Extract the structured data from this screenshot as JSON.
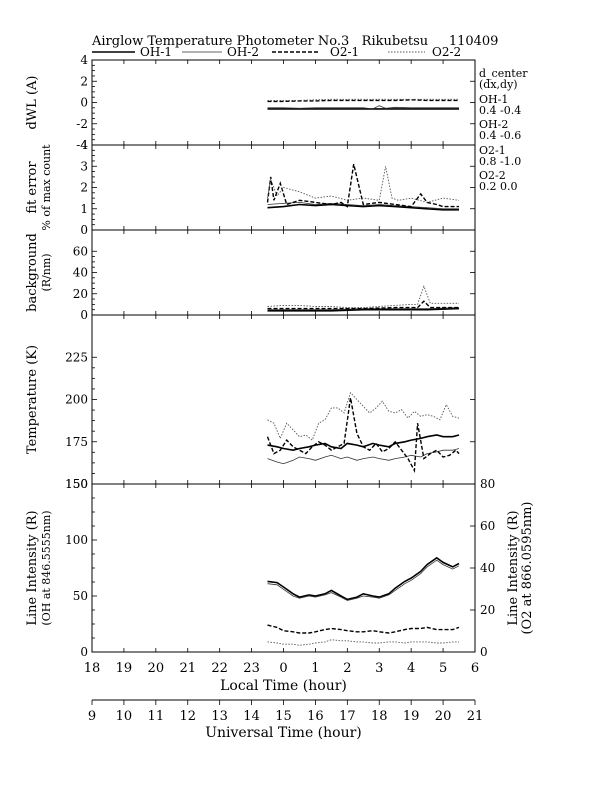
{
  "chart_data": {
    "type": "line",
    "title": "Airglow Temperature Photometer No.3   Rikubetsu     110409",
    "legend": [
      {
        "name": "OH-1",
        "color": "#000000",
        "dash": "solid",
        "width": 1.6
      },
      {
        "name": "OH-2",
        "color": "#333333",
        "dash": "solid",
        "width": 0.8
      },
      {
        "name": "O2-1",
        "color": "#000000",
        "dash": "dashed",
        "width": 1.4
      },
      {
        "name": "O2-2",
        "color": "#555555",
        "dash": "dotted",
        "width": 0.9
      }
    ],
    "x_local": {
      "label": "Local Time (hour)",
      "range": [
        18,
        30
      ],
      "ticks": [
        "18",
        "19",
        "20",
        "21",
        "22",
        "23",
        "0",
        "1",
        "2",
        "3",
        "4",
        "5",
        "6"
      ]
    },
    "x_ut": {
      "label": "Universal Time (hour)",
      "range": [
        9,
        21
      ],
      "ticks": [
        "9",
        "10",
        "11",
        "12",
        "13",
        "14",
        "15",
        "16",
        "17",
        "18",
        "19",
        "20",
        "21"
      ]
    },
    "d_center": {
      "title": "d_center",
      "subtitle": "(dx,dy)",
      "entries": [
        {
          "name": "OH-1",
          "value": "0.4  -0.4"
        },
        {
          "name": "OH-2",
          "value": "0.4  -0.6"
        },
        {
          "name": "O2-1",
          "value": "0.8  -1.0"
        },
        {
          "name": "O2-2",
          "value": "0.2   0.0"
        }
      ]
    },
    "panels": [
      {
        "id": "dwl",
        "ylabel": [
          "dWL (A)"
        ],
        "ylim": [
          -4,
          4
        ],
        "yticks": [
          "-4",
          "-2",
          "0",
          "2",
          "4"
        ],
        "series": [
          {
            "name": "OH-1",
            "x": [
              23.5,
              24.5,
              25.5,
              26.5,
              27.0,
              27.2,
              27.5,
              28.0,
              28.5,
              29.5
            ],
            "y": [
              -0.6,
              -0.6,
              -0.6,
              -0.6,
              -0.6,
              -0.6,
              -0.6,
              -0.6,
              -0.6,
              -0.6
            ]
          },
          {
            "name": "OH-2",
            "x": [
              23.5,
              24.0,
              24.5,
              25.0,
              25.5,
              26.0,
              26.5,
              26.8,
              27.0,
              27.2,
              27.5,
              28.0,
              28.5,
              29.5
            ],
            "y": [
              -0.5,
              -0.5,
              -0.55,
              -0.5,
              -0.5,
              -0.5,
              -0.5,
              -0.6,
              -0.3,
              -0.55,
              -0.45,
              -0.5,
              -0.5,
              -0.5
            ]
          },
          {
            "name": "O2-1",
            "x": [
              23.5,
              24.0,
              24.5,
              25.0,
              25.5,
              26.0,
              26.5,
              27.0,
              27.5,
              28.0,
              28.5,
              29.0,
              29.5
            ],
            "y": [
              0.1,
              0.1,
              0.15,
              0.15,
              0.2,
              0.2,
              0.2,
              0.2,
              0.2,
              0.25,
              0.2,
              0.2,
              0.2
            ]
          },
          {
            "name": "O2-2",
            "x": [
              23.5,
              24.0,
              24.5,
              25.0,
              25.5,
              26.0,
              26.5,
              27.0,
              27.5,
              28.0,
              28.5,
              29.0,
              29.5
            ],
            "y": [
              0.2,
              0.2,
              0.2,
              0.25,
              0.3,
              0.3,
              0.3,
              0.3,
              0.3,
              0.3,
              0.3,
              0.3,
              0.3
            ]
          }
        ]
      },
      {
        "id": "fiterr",
        "ylabel": [
          "fit error",
          "% of max count"
        ],
        "ylim": [
          0,
          4
        ],
        "yticks": [
          "0",
          "1",
          "2",
          "3",
          "4"
        ],
        "series": [
          {
            "name": "OH-1",
            "x": [
              23.5,
              24.0,
              24.5,
              25.0,
              25.5,
              26.0,
              26.5,
              27.0,
              27.5,
              28.0,
              28.5,
              29.0,
              29.5
            ],
            "y": [
              1.05,
              1.1,
              1.2,
              1.15,
              1.2,
              1.15,
              1.1,
              1.15,
              1.1,
              1.05,
              1.0,
              0.95,
              0.95
            ]
          },
          {
            "name": "OH-2",
            "x": [
              23.5,
              24.0,
              24.5,
              25.0,
              25.5,
              26.0,
              26.5,
              27.0,
              27.5,
              28.0,
              28.5,
              29.0,
              29.5
            ],
            "y": [
              1.2,
              1.25,
              1.3,
              1.2,
              1.25,
              1.2,
              1.15,
              1.2,
              1.15,
              1.1,
              1.05,
              1.0,
              1.0
            ]
          },
          {
            "name": "O2-1",
            "x": [
              23.5,
              23.6,
              23.7,
              23.9,
              24.1,
              24.5,
              25.0,
              25.5,
              25.8,
              26.0,
              26.2,
              26.5,
              27.0,
              27.5,
              28.0,
              28.3,
              28.5,
              28.8,
              29.0,
              29.5
            ],
            "y": [
              1.3,
              2.5,
              1.4,
              2.2,
              1.2,
              1.4,
              1.3,
              1.2,
              1.3,
              1.1,
              3.1,
              1.2,
              1.3,
              1.2,
              1.1,
              1.7,
              1.3,
              1.2,
              1.1,
              1.1
            ]
          },
          {
            "name": "O2-2",
            "x": [
              23.5,
              23.6,
              23.8,
              24.0,
              24.5,
              25.0,
              25.5,
              26.0,
              26.5,
              27.0,
              27.2,
              27.4,
              27.6,
              28.0,
              28.5,
              29.0,
              29.5
            ],
            "y": [
              1.5,
              2.4,
              1.6,
              2.0,
              1.8,
              1.5,
              1.6,
              1.4,
              1.5,
              1.4,
              3.0,
              1.5,
              1.4,
              1.5,
              1.3,
              1.5,
              1.4
            ]
          }
        ]
      },
      {
        "id": "bg",
        "ylabel": [
          "background",
          "(R/nm)"
        ],
        "ylim": [
          0,
          80
        ],
        "yticks": [
          "0",
          "20",
          "40",
          "60"
        ],
        "series": [
          {
            "name": "OH-1",
            "x": [
              23.5,
              24.5,
              25.5,
              26.5,
              27.5,
              28.5,
              29.5
            ],
            "y": [
              4,
              4,
              4,
              5,
              5,
              5,
              6
            ]
          },
          {
            "name": "OH-2",
            "x": [
              23.5,
              24.5,
              25.5,
              26.5,
              27.5,
              28.5,
              29.5
            ],
            "y": [
              5,
              5,
              5,
              6,
              6,
              6,
              7
            ]
          },
          {
            "name": "O2-1",
            "x": [
              23.5,
              24.5,
              25.5,
              26.5,
              27.5,
              28.0,
              28.2,
              28.4,
              28.6,
              29.0,
              29.5
            ],
            "y": [
              6,
              6,
              6,
              6,
              7,
              7,
              7,
              13,
              7,
              7,
              7
            ]
          },
          {
            "name": "O2-2",
            "x": [
              23.5,
              24.0,
              24.5,
              25.0,
              25.5,
              26.0,
              26.5,
              27.0,
              27.5,
              28.0,
              28.2,
              28.4,
              28.6,
              29.0,
              29.5
            ],
            "y": [
              8,
              9,
              9,
              8,
              8,
              7,
              7,
              8,
              9,
              10,
              10,
              27,
              11,
              11,
              11
            ]
          }
        ]
      },
      {
        "id": "temp",
        "ylabel": [
          "Temperature (K)"
        ],
        "ylim": [
          150,
          250
        ],
        "yticks": [
          "150",
          "175",
          "200",
          "225"
        ],
        "series": [
          {
            "name": "OH-1",
            "x": [
              23.5,
              23.8,
              24.0,
              24.3,
              24.5,
              24.8,
              25.0,
              25.3,
              25.5,
              25.8,
              26.0,
              26.3,
              26.5,
              26.8,
              27.0,
              27.3,
              27.5,
              27.8,
              28.0,
              28.3,
              28.5,
              28.8,
              29.0,
              29.3,
              29.5
            ],
            "y": [
              173,
              172,
              171,
              170,
              171,
              172,
              173,
              174,
              172,
              171,
              174,
              173,
              172,
              174,
              173,
              172,
              174,
              175,
              176,
              177,
              178,
              179,
              178,
              178,
              179
            ]
          },
          {
            "name": "OH-2",
            "x": [
              23.5,
              23.8,
              24.0,
              24.3,
              24.5,
              24.8,
              25.0,
              25.3,
              25.5,
              25.8,
              26.0,
              26.3,
              26.5,
              26.8,
              27.0,
              27.3,
              27.5,
              27.8,
              28.0,
              28.3,
              28.5,
              28.8,
              29.0,
              29.3,
              29.5
            ],
            "y": [
              165,
              163,
              162,
              164,
              166,
              165,
              164,
              166,
              167,
              165,
              166,
              164,
              165,
              166,
              165,
              164,
              165,
              166,
              167,
              166,
              168,
              169,
              170,
              170,
              171
            ]
          },
          {
            "name": "O2-1",
            "x": [
              23.5,
              23.7,
              23.9,
              24.1,
              24.3,
              24.5,
              24.7,
              24.9,
              25.1,
              25.3,
              25.5,
              25.7,
              25.9,
              26.1,
              26.3,
              26.5,
              26.7,
              26.9,
              27.1,
              27.3,
              27.5,
              27.7,
              27.9,
              28.1,
              28.2,
              28.4,
              28.6,
              28.8,
              29.0,
              29.2,
              29.4,
              29.5
            ],
            "y": [
              178,
              168,
              170,
              176,
              172,
              170,
              168,
              172,
              175,
              173,
              170,
              172,
              174,
              201,
              180,
              172,
              170,
              174,
              169,
              171,
              175,
              170,
              165,
              158,
              186,
              165,
              168,
              170,
              166,
              167,
              170,
              168
            ]
          },
          {
            "name": "O2-2",
            "x": [
              23.5,
              23.7,
              23.9,
              24.1,
              24.3,
              24.5,
              24.7,
              24.9,
              25.1,
              25.3,
              25.5,
              25.7,
              25.9,
              26.1,
              26.3,
              26.5,
              26.7,
              26.9,
              27.1,
              27.3,
              27.5,
              27.7,
              27.9,
              28.1,
              28.3,
              28.5,
              28.7,
              28.9,
              29.1,
              29.3,
              29.5
            ],
            "y": [
              188,
              186,
              177,
              186,
              182,
              178,
              179,
              176,
              186,
              188,
              195,
              195,
              192,
              204,
              200,
              196,
              192,
              195,
              199,
              193,
              192,
              194,
              189,
              193,
              190,
              191,
              190,
              188,
              197,
              190,
              189
            ]
          }
        ]
      },
      {
        "id": "li",
        "ylabel": [
          "Line Intensity (R)",
          "(OH at 846.5555nm)"
        ],
        "ylabel_right": [
          "Line Intensity (R)",
          "(O2 at 866.0595nm)"
        ],
        "ylim": [
          0,
          150
        ],
        "ylim_right": [
          0,
          80
        ],
        "yticks": [
          "0",
          "50",
          "100",
          "150"
        ],
        "yticks_right": [
          "0",
          "20",
          "40",
          "60",
          "80"
        ],
        "series": [
          {
            "name": "OH-1",
            "x": [
              23.5,
              23.8,
              24.0,
              24.3,
              24.5,
              24.8,
              25.0,
              25.3,
              25.5,
              25.8,
              26.0,
              26.3,
              26.5,
              26.8,
              27.0,
              27.3,
              27.5,
              27.8,
              28.0,
              28.3,
              28.5,
              28.8,
              29.0,
              29.3,
              29.5
            ],
            "y": [
              63,
              62,
              58,
              52,
              49,
              51,
              50,
              52,
              55,
              50,
              47,
              49,
              52,
              50,
              49,
              52,
              57,
              63,
              66,
              72,
              78,
              84,
              80,
              76,
              79
            ]
          },
          {
            "name": "OH-2",
            "x": [
              23.5,
              23.8,
              24.0,
              24.3,
              24.5,
              24.8,
              25.0,
              25.3,
              25.5,
              25.8,
              26.0,
              26.3,
              26.5,
              26.8,
              27.0,
              27.3,
              27.5,
              27.8,
              28.0,
              28.3,
              28.5,
              28.8,
              29.0,
              29.3,
              29.5
            ],
            "y": [
              61,
              60,
              56,
              50,
              48,
              50,
              49,
              51,
              53,
              49,
              46,
              48,
              50,
              49,
              48,
              51,
              55,
              61,
              64,
              70,
              76,
              82,
              78,
              74,
              77
            ]
          },
          {
            "name": "O2-1",
            "x": [
              23.5,
              23.8,
              24.0,
              24.3,
              24.5,
              24.8,
              25.0,
              25.3,
              25.5,
              25.8,
              26.0,
              26.3,
              26.5,
              26.8,
              27.0,
              27.3,
              27.5,
              27.8,
              28.0,
              28.3,
              28.5,
              28.8,
              29.0,
              29.3,
              29.5
            ],
            "y": [
              24,
              22,
              19,
              18,
              17,
              17,
              18,
              20,
              21,
              20,
              19,
              18,
              18,
              19,
              18,
              17,
              18,
              20,
              21,
              21,
              22,
              20,
              20,
              20,
              22
            ]
          },
          {
            "name": "O2-2",
            "x": [
              23.5,
              23.8,
              24.0,
              24.3,
              24.5,
              24.8,
              25.0,
              25.3,
              25.5,
              25.8,
              26.0,
              26.3,
              26.5,
              26.8,
              27.0,
              27.3,
              27.5,
              27.8,
              28.0,
              28.3,
              28.5,
              28.8,
              29.0,
              29.3,
              29.5
            ],
            "y": [
              9,
              8,
              7,
              7,
              6,
              7,
              8,
              9,
              11,
              10,
              10,
              9,
              9,
              8,
              8,
              9,
              9,
              8,
              9,
              9,
              9,
              8,
              8,
              9,
              9
            ]
          }
        ]
      }
    ]
  }
}
